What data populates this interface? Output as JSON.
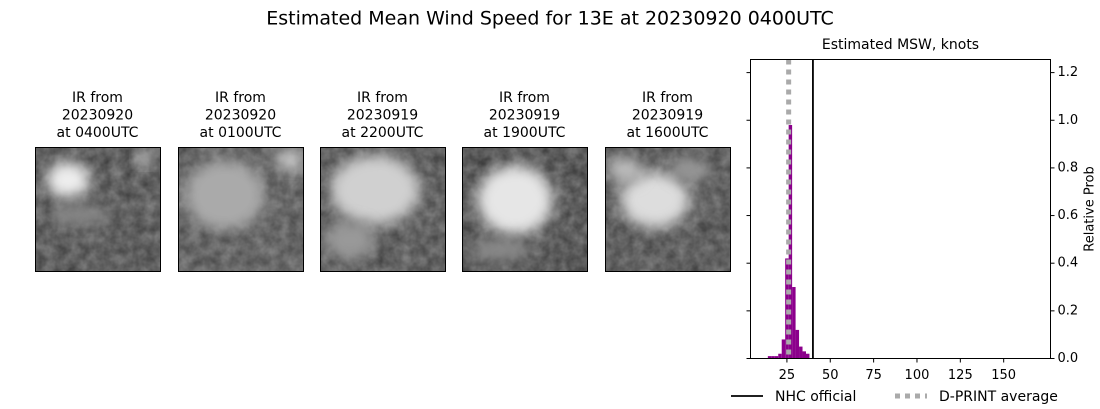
{
  "title": "Estimated Mean Wind Speed for 13E at 20230920 0400UTC",
  "panels": [
    {
      "lines": [
        "IR from",
        "20230920",
        "at 0400UTC"
      ]
    },
    {
      "lines": [
        "IR from",
        "20230920",
        "at 0100UTC"
      ]
    },
    {
      "lines": [
        "IR from",
        "20230919",
        "at 2200UTC"
      ]
    },
    {
      "lines": [
        "IR from",
        "20230919",
        "at 1900UTC"
      ]
    },
    {
      "lines": [
        "IR from",
        "20230919",
        "at 1600UTC"
      ]
    }
  ],
  "chart_data": {
    "type": "histogram",
    "title": "Estimated MSW, knots",
    "ylabel": "Relative Prob",
    "bins": [
      14,
      16,
      18,
      20,
      22,
      24,
      26,
      28,
      30,
      32,
      34,
      36,
      38
    ],
    "values": [
      0.01,
      0.01,
      0.01,
      0.02,
      0.08,
      0.42,
      0.98,
      0.3,
      0.12,
      0.05,
      0.03,
      0.02
    ],
    "color": "#8b008b",
    "lines": [
      {
        "name": "NHC official",
        "value": 40,
        "color": "#000000",
        "style": "solid"
      },
      {
        "name": "D-PRINT average",
        "value": 26,
        "color": "#aaaaaa",
        "style": "dotted"
      }
    ],
    "xlim": [
      4,
      177
    ],
    "xticks": [
      25,
      50,
      75,
      100,
      125,
      150
    ],
    "ylim": [
      0,
      1.255
    ],
    "yticks": [
      {
        "value": 0,
        "label": "0.0"
      },
      0.2,
      0.4,
      0.6,
      0.8,
      {
        "value": 1,
        "label": "1.0"
      },
      1.2
    ]
  }
}
